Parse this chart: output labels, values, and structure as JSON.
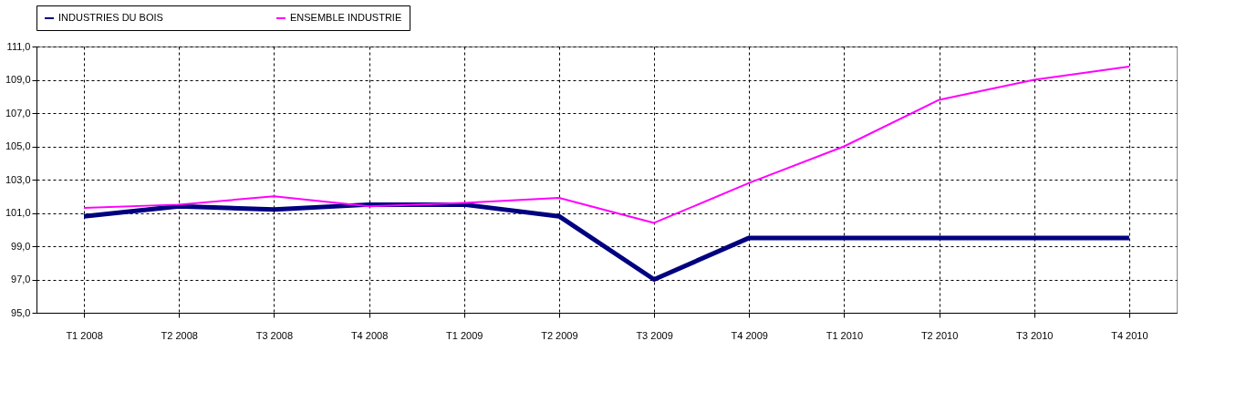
{
  "chart_data": {
    "type": "line",
    "categories": [
      "T1 2008",
      "T2 2008",
      "T3 2008",
      "T4 2008",
      "T1 2009",
      "T2 2009",
      "T3 2009",
      "T4 2009",
      "T1 2010",
      "T2 2010",
      "T3 2010",
      "T4 2010"
    ],
    "series": [
      {
        "name": "INDUSTRIES DU BOIS",
        "color": "#000080",
        "values": [
          100.8,
          101.4,
          101.2,
          101.5,
          101.5,
          100.8,
          97.0,
          99.5,
          99.5,
          99.5,
          99.5,
          99.5
        ]
      },
      {
        "name": "ENSEMBLE INDUSTRIE",
        "color": "#ff00ff",
        "values": [
          101.3,
          101.5,
          102.0,
          101.4,
          101.6,
          101.9,
          100.4,
          102.8,
          105.0,
          107.8,
          109.0,
          109.8
        ]
      }
    ],
    "ylim": [
      95,
      111
    ],
    "yticks": [
      {
        "value": 95,
        "label": "95,0"
      },
      {
        "value": 97,
        "label": "97,0"
      },
      {
        "value": 99,
        "label": "99,0"
      },
      {
        "value": 101,
        "label": "101,0"
      },
      {
        "value": 103,
        "label": "103,0"
      },
      {
        "value": 105,
        "label": "105,0"
      },
      {
        "value": 107,
        "label": "107,0"
      },
      {
        "value": 109,
        "label": "109,0"
      },
      {
        "value": 111,
        "label": "111,0"
      }
    ],
    "grid": true,
    "legend": "top",
    "marker": "none",
    "line_style": "solid"
  }
}
